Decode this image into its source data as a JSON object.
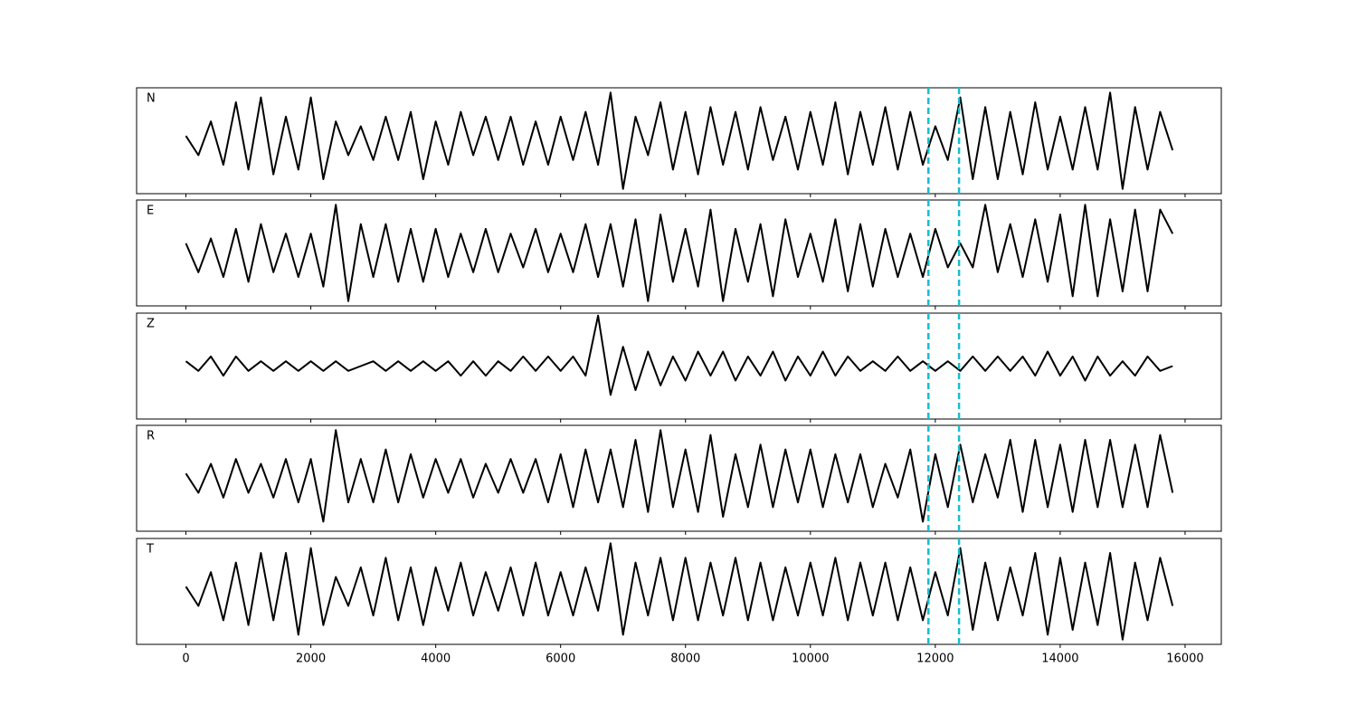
{
  "chart_data": {
    "type": "line",
    "x": [
      0,
      200,
      400,
      600,
      800,
      1000,
      1200,
      1400,
      1600,
      1800,
      2000,
      2200,
      2400,
      2600,
      2800,
      3000,
      3200,
      3400,
      3600,
      3800,
      4000,
      4200,
      4400,
      4600,
      4800,
      5000,
      5200,
      5400,
      5600,
      5800,
      6000,
      6200,
      6400,
      6600,
      6800,
      7000,
      7200,
      7400,
      7600,
      7800,
      8000,
      8200,
      8400,
      8600,
      8800,
      9000,
      9200,
      9400,
      9600,
      9800,
      10000,
      10200,
      10400,
      10600,
      10800,
      11000,
      11200,
      11400,
      11600,
      11800,
      12000,
      12200,
      12400,
      12600,
      12800,
      13000,
      13200,
      13400,
      13600,
      13800,
      14000,
      14200,
      14400,
      14600,
      14800,
      15000,
      15200,
      15400,
      15600,
      15800
    ],
    "series": [
      {
        "name": "N",
        "color": "#000000",
        "values": [
          0.1,
          -0.3,
          0.4,
          -0.5,
          0.8,
          -0.6,
          0.9,
          -0.7,
          0.5,
          -0.6,
          0.9,
          -0.8,
          0.4,
          -0.3,
          0.3,
          -0.4,
          0.5,
          -0.4,
          0.6,
          -0.8,
          0.4,
          -0.5,
          0.6,
          -0.3,
          0.5,
          -0.4,
          0.5,
          -0.5,
          0.4,
          -0.5,
          0.5,
          -0.4,
          0.6,
          -0.5,
          1.0,
          -1.0,
          0.5,
          -0.3,
          0.8,
          -0.6,
          0.6,
          -0.7,
          0.7,
          -0.5,
          0.6,
          -0.6,
          0.7,
          -0.4,
          0.5,
          -0.6,
          0.6,
          -0.5,
          0.8,
          -0.7,
          0.6,
          -0.5,
          0.7,
          -0.6,
          0.6,
          -0.5,
          0.3,
          -0.4,
          0.9,
          -0.8,
          0.7,
          -0.8,
          0.6,
          -0.7,
          0.8,
          -0.6,
          0.5,
          -0.6,
          0.7,
          -0.6,
          1.0,
          -1.0,
          0.7,
          -0.6,
          0.6,
          -0.2
        ]
      },
      {
        "name": "E",
        "color": "#000000",
        "values": [
          0.2,
          -0.4,
          0.3,
          -0.5,
          0.5,
          -0.6,
          0.6,
          -0.4,
          0.4,
          -0.5,
          0.4,
          -0.7,
          1.0,
          -1.0,
          0.6,
          -0.5,
          0.6,
          -0.6,
          0.5,
          -0.6,
          0.5,
          -0.5,
          0.4,
          -0.4,
          0.5,
          -0.4,
          0.4,
          -0.3,
          0.5,
          -0.4,
          0.4,
          -0.4,
          0.6,
          -0.5,
          0.6,
          -0.7,
          0.7,
          -1.0,
          0.8,
          -0.6,
          0.5,
          -0.7,
          0.9,
          -1.0,
          0.5,
          -0.6,
          0.6,
          -0.9,
          0.7,
          -0.5,
          0.4,
          -0.6,
          0.7,
          -0.8,
          0.6,
          -0.7,
          0.5,
          -0.5,
          0.4,
          -0.5,
          0.5,
          -0.3,
          0.2,
          -0.3,
          1.0,
          -0.4,
          0.6,
          -0.5,
          0.7,
          -0.6,
          0.8,
          -0.9,
          1.0,
          -0.9,
          0.7,
          -0.8,
          0.9,
          -0.8,
          0.9,
          0.4
        ]
      },
      {
        "name": "Z",
        "color": "#000000",
        "values": [
          0.1,
          -0.1,
          0.2,
          -0.2,
          0.2,
          -0.1,
          0.1,
          -0.1,
          0.1,
          -0.1,
          0.1,
          -0.1,
          0.1,
          -0.1,
          0.0,
          0.1,
          -0.1,
          0.1,
          -0.1,
          0.1,
          -0.1,
          0.1,
          -0.2,
          0.1,
          -0.2,
          0.1,
          -0.1,
          0.2,
          -0.1,
          0.2,
          -0.1,
          0.2,
          -0.2,
          1.05,
          -0.6,
          0.4,
          -0.5,
          0.3,
          -0.4,
          0.2,
          -0.3,
          0.3,
          -0.2,
          0.3,
          -0.3,
          0.2,
          -0.2,
          0.3,
          -0.3,
          0.2,
          -0.2,
          0.3,
          -0.2,
          0.2,
          -0.1,
          0.1,
          -0.1,
          0.2,
          -0.1,
          0.1,
          -0.1,
          0.1,
          -0.1,
          0.2,
          -0.1,
          0.2,
          -0.1,
          0.2,
          -0.2,
          0.3,
          -0.2,
          0.2,
          -0.3,
          0.2,
          -0.2,
          0.1,
          -0.2,
          0.2,
          -0.1,
          0.0
        ]
      },
      {
        "name": "R",
        "color": "#000000",
        "values": [
          0.1,
          -0.3,
          0.3,
          -0.4,
          0.4,
          -0.3,
          0.3,
          -0.4,
          0.4,
          -0.5,
          0.4,
          -0.9,
          1.0,
          -0.5,
          0.4,
          -0.5,
          0.6,
          -0.5,
          0.5,
          -0.4,
          0.4,
          -0.3,
          0.4,
          -0.4,
          0.3,
          -0.3,
          0.4,
          -0.3,
          0.4,
          -0.5,
          0.5,
          -0.6,
          0.6,
          -0.5,
          0.6,
          -0.6,
          0.8,
          -0.7,
          1.0,
          -0.6,
          0.6,
          -0.7,
          0.9,
          -0.8,
          0.5,
          -0.6,
          0.7,
          -0.6,
          0.6,
          -0.5,
          0.6,
          -0.6,
          0.5,
          -0.5,
          0.5,
          -0.6,
          0.3,
          -0.4,
          0.6,
          -0.9,
          0.5,
          -0.6,
          0.7,
          -0.5,
          0.5,
          -0.4,
          0.8,
          -0.7,
          0.8,
          -0.6,
          0.7,
          -0.7,
          0.8,
          -0.6,
          0.8,
          -0.6,
          0.7,
          -0.6,
          0.9,
          -0.3
        ]
      },
      {
        "name": "T",
        "color": "#000000",
        "values": [
          0.1,
          -0.3,
          0.4,
          -0.6,
          0.6,
          -0.7,
          0.8,
          -0.6,
          0.8,
          -0.9,
          0.9,
          -0.7,
          0.3,
          -0.3,
          0.5,
          -0.5,
          0.7,
          -0.6,
          0.5,
          -0.7,
          0.5,
          -0.4,
          0.6,
          -0.5,
          0.4,
          -0.4,
          0.5,
          -0.5,
          0.6,
          -0.5,
          0.4,
          -0.5,
          0.5,
          -0.4,
          1.0,
          -0.9,
          0.6,
          -0.5,
          0.7,
          -0.6,
          0.7,
          -0.6,
          0.6,
          -0.5,
          0.7,
          -0.6,
          0.6,
          -0.6,
          0.5,
          -0.5,
          0.6,
          -0.5,
          0.7,
          -0.6,
          0.6,
          -0.5,
          0.6,
          -0.6,
          0.5,
          -0.6,
          0.4,
          -0.5,
          0.9,
          -0.8,
          0.6,
          -0.6,
          0.5,
          -0.5,
          0.8,
          -0.9,
          0.7,
          -0.8,
          0.6,
          -0.7,
          0.8,
          -1.0,
          0.6,
          -0.6,
          0.7,
          -0.3
        ]
      }
    ],
    "vlines": {
      "x": [
        11890,
        12380
      ],
      "color": "#17becf"
    },
    "xlim": [
      -790,
      16580
    ],
    "xticks": [
      0,
      2000,
      4000,
      6000,
      8000,
      10000,
      12000,
      14000,
      16000
    ],
    "ylim": [
      -1.1,
      1.1
    ]
  }
}
